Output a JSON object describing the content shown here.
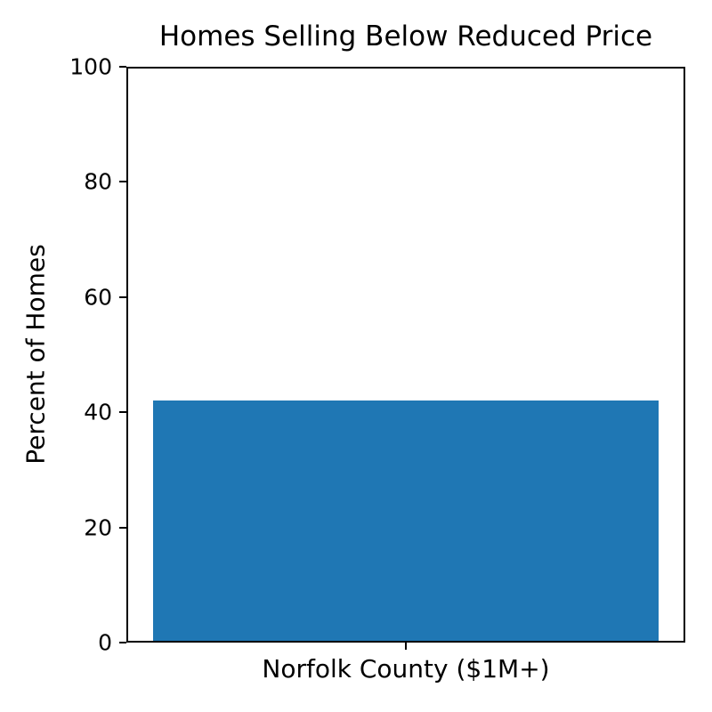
{
  "chart_data": {
    "type": "bar",
    "title": "Homes Selling Below Reduced Price",
    "categories": [
      "Norfolk County ($1M+)"
    ],
    "values": [
      42
    ],
    "xlabel": "",
    "ylabel": "Percent of Homes",
    "ylim": [
      0,
      100
    ],
    "yticks": [
      0,
      20,
      40,
      60,
      80,
      100
    ],
    "bar_color": "#1f77b4",
    "bar_width_fraction": 0.909,
    "grid": false,
    "legend": false
  }
}
